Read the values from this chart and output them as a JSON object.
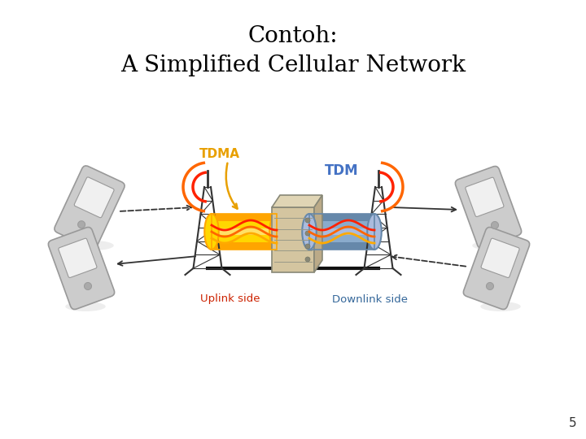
{
  "title_line1": "Contoh:",
  "title_line2": "A Simplified Cellular Network",
  "title_fontsize": 20,
  "title_color": "#000000",
  "tdma_label": "TDMA",
  "tdma_color": "#E8A000",
  "tdm_label": "TDM",
  "tdm_color": "#4472C4",
  "uplink_label": "Uplink side",
  "uplink_color": "#CC2200",
  "downlink_label": "Downlink side",
  "downlink_color": "#336699",
  "bg_color": "#FFFFFF",
  "page_number": "5",
  "cylinder_uplink_colors": [
    "#FFD700",
    "#FFA500",
    "#FFE066"
  ],
  "cylinder_downlink_colors": [
    "#8AABCC",
    "#6688AA",
    "#AABBDD"
  ],
  "server_color": "#D4C5A0",
  "server_shadow": "#BBAA88",
  "tower_color": "#333333",
  "phone_color": "#CCCCCC",
  "phone_edge": "#999999",
  "signal_colors": [
    "#FF2200",
    "#FF6600",
    "#FFAA00"
  ],
  "arrow_color": "#333333",
  "wire_color": "#111111"
}
